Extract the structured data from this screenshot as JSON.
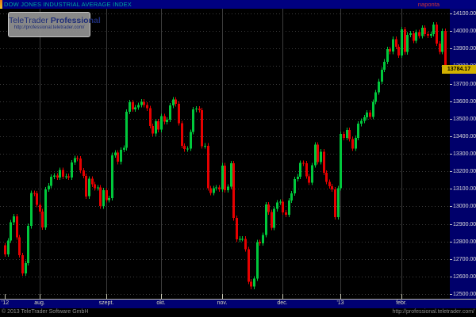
{
  "titlebar": {
    "title": "DOW JONES INDUSTRIAL AVERAGE INDEX",
    "interval_label": "naponta"
  },
  "watermark": {
    "brand_regular": "TeleTrader",
    "brand_bold": "Professional",
    "url": "http://professional.teletrader.com/"
  },
  "statusbar": {
    "copyright": "© 2013 TeleTrader Software GmbH",
    "url": "http://professional.teletrader.com/"
  },
  "chart_data": {
    "type": "candlestick",
    "title": "DOW JONES INDUSTRIAL AVERAGE INDEX",
    "interval": "naponta",
    "last_price": 13784.17,
    "y_axis": {
      "min": 12500,
      "max": 14100,
      "step": 100
    },
    "x_ticks": [
      {
        "label": "'12",
        "index": 0,
        "gridline": false
      },
      {
        "label": "aug.",
        "index": 12,
        "gridline": true
      },
      {
        "label": "szept.",
        "index": 35,
        "gridline": true
      },
      {
        "label": "okt.",
        "index": 54,
        "gridline": true
      },
      {
        "label": "nov.",
        "index": 75,
        "gridline": true
      },
      {
        "label": "dec.",
        "index": 96,
        "gridline": true
      },
      {
        "label": "'13",
        "index": 116,
        "gridline": true
      },
      {
        "label": "febr.",
        "index": 137,
        "gridline": true
      }
    ],
    "first_open": 12777,
    "wick_pts": 14,
    "closes": [
      12727,
      12805,
      12908,
      12943,
      12823,
      12721,
      12617,
      12676,
      12888,
      13076,
      13073,
      13009,
      12971,
      12879,
      13096,
      13118,
      13169,
      13176,
      13165,
      13208,
      13169,
      13172,
      13165,
      13250,
      13275,
      13272,
      13204,
      13173,
      13057,
      13158,
      13125,
      13103,
      13107,
      13001,
      13091,
      13036,
      13047,
      13292,
      13307,
      13254,
      13323,
      13333,
      13540,
      13593,
      13553,
      13565,
      13578,
      13597,
      13579,
      13559,
      13458,
      13414,
      13486,
      13437,
      13515,
      13482,
      13495,
      13575,
      13610,
      13584,
      13474,
      13345,
      13326,
      13329,
      13424,
      13552,
      13557,
      13549,
      13344,
      13346,
      13103,
      13077,
      13104,
      13107,
      13096,
      13233,
      13093,
      13112,
      13246,
      12933,
      12811,
      12815,
      12815,
      12756,
      12571,
      12542,
      12588,
      12796,
      12789,
      12837,
      13010,
      12967,
      12878,
      12985,
      13022,
      13026,
      12966,
      12952,
      13034,
      13074,
      13155,
      13170,
      13248,
      13245,
      13171,
      13135,
      13235,
      13351,
      13252,
      13312,
      13191,
      13139,
      13115,
      13096,
      12938,
      13104,
      13413,
      13391,
      13435,
      13384,
      13329,
      13391,
      13471,
      13488,
      13507,
      13535,
      13511,
      13596,
      13650,
      13712,
      13779,
      13825,
      13896,
      13882,
      13954,
      13910,
      13861,
      14010,
      13880,
      13979,
      13987,
      13944,
      13993,
      13971,
      14019,
      13983,
      13973,
      13982,
      14036,
      13928,
      13881,
      14001,
      13784.17
    ],
    "colors": {
      "up": "#00C83C",
      "down": "#E60000",
      "grid": "#3C3C3C",
      "background": "#000000",
      "axis_bg": "#00006B",
      "titlebar_bg": "#000080",
      "price_tag_bg": "#D2B100"
    }
  }
}
